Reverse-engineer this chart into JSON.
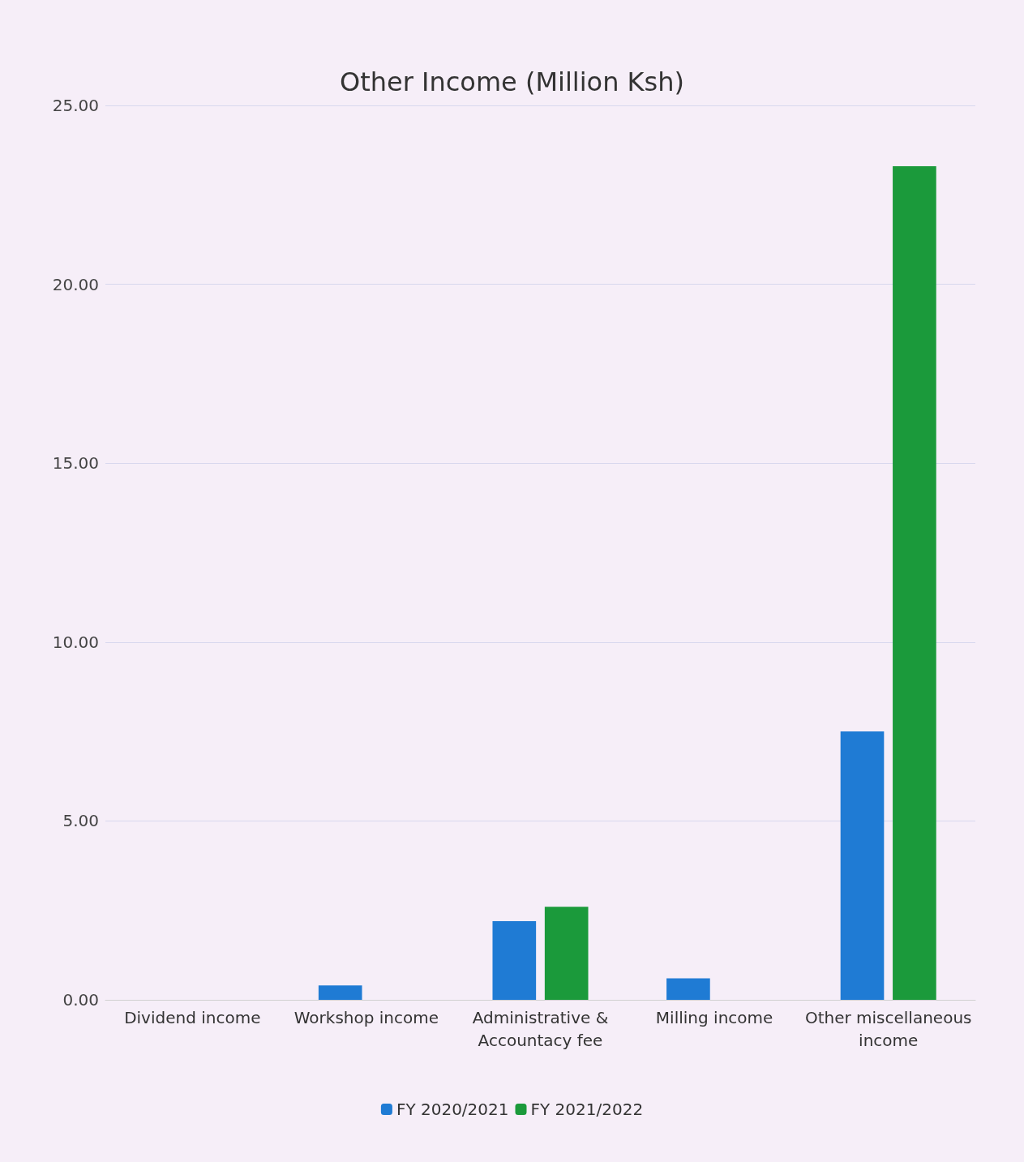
{
  "chart_data": {
    "type": "bar",
    "title": "Other Income (Million Ksh)",
    "categories": [
      "Dividend income",
      "Workshop income",
      "Administrative &\nAccountacy fee",
      "Milling income",
      "Other miscellaneous\nincome"
    ],
    "series": [
      {
        "name": "FY 2020/2021",
        "color": "#1f7bd4",
        "values": [
          0,
          0.4,
          2.2,
          0.6,
          7.5
        ]
      },
      {
        "name": "FY 2021/2022",
        "color": "#1b9a3b",
        "values": [
          0,
          0,
          2.6,
          0,
          23.3
        ]
      }
    ],
    "ylim": [
      0,
      25
    ],
    "yticks": [
      {
        "value": 0,
        "label": "0.00"
      },
      {
        "value": 5,
        "label": "5.00"
      },
      {
        "value": 10,
        "label": "10.00"
      },
      {
        "value": 15,
        "label": "15.00"
      },
      {
        "value": 20,
        "label": "20.00"
      },
      {
        "value": 25,
        "label": "25.00"
      }
    ],
    "grid": "y",
    "legend": "bottom"
  }
}
